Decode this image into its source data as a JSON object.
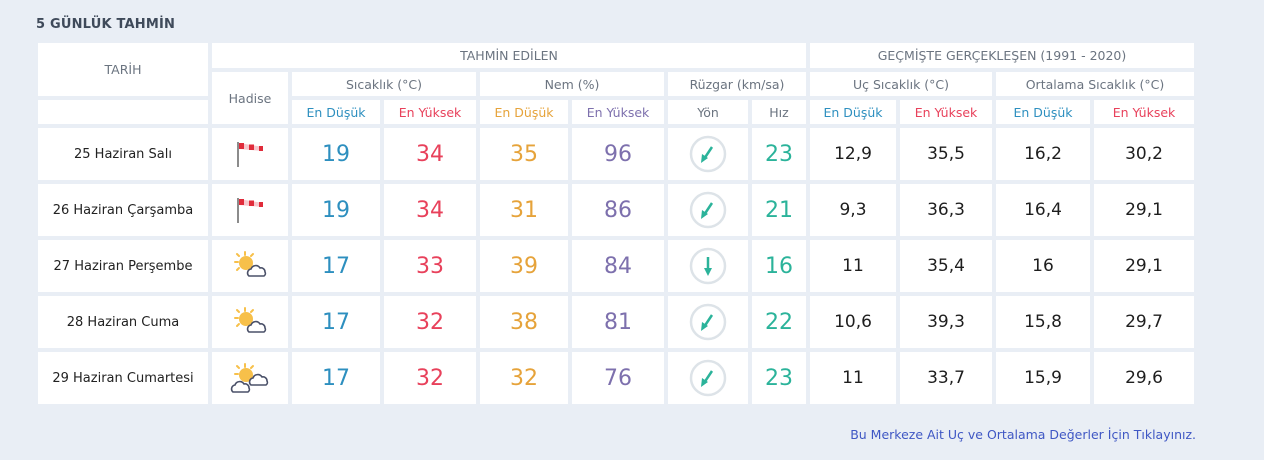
{
  "title": "5 GÜNLÜK TAHMİN",
  "headers": {
    "tarih": "TARİH",
    "tahmin": "TAHMİN EDİLEN",
    "gecmis": "GEÇMİŞTE GERÇEKLEŞEN (1991 - 2020)",
    "hadise": "Hadise",
    "sicaklik": "Sıcaklık (°C)",
    "nem": "Nem (%)",
    "ruzgar": "Rüzgar (km/sa)",
    "uc": "Uç Sıcaklık (°C)",
    "ortalama": "Ortalama Sıcaklık (°C)",
    "en_dusuk": "En Düşük",
    "en_yuksek": "En Yüksek",
    "yon": "Yön",
    "hiz": "Hız"
  },
  "colors": {
    "blue": "#2d8fbf",
    "red": "#e8415b",
    "orange": "#e6a33a",
    "purple": "#7d70ad",
    "teal": "#2bb39a"
  },
  "rows": [
    {
      "date": "25 Haziran Salı",
      "icon": "windy-flag-icon",
      "tmin": "19",
      "tmax": "34",
      "hmin": "35",
      "hmax": "96",
      "dir": "southwest-arrow",
      "speed": "23",
      "uc_min": "12,9",
      "uc_max": "35,5",
      "ort_min": "16,2",
      "ort_max": "30,2"
    },
    {
      "date": "26 Haziran Çarşamba",
      "icon": "windy-flag-icon",
      "tmin": "19",
      "tmax": "34",
      "hmin": "31",
      "hmax": "86",
      "dir": "southwest-arrow",
      "speed": "21",
      "uc_min": "9,3",
      "uc_max": "36,3",
      "ort_min": "16,4",
      "ort_max": "29,1"
    },
    {
      "date": "27 Haziran Perşembe",
      "icon": "partly-cloudy-icon",
      "tmin": "17",
      "tmax": "33",
      "hmin": "39",
      "hmax": "84",
      "dir": "south-arrow",
      "speed": "16",
      "uc_min": "11",
      "uc_max": "35,4",
      "ort_min": "16",
      "ort_max": "29,1"
    },
    {
      "date": "28 Haziran Cuma",
      "icon": "partly-cloudy-icon",
      "tmin": "17",
      "tmax": "32",
      "hmin": "38",
      "hmax": "81",
      "dir": "southwest-arrow",
      "speed": "22",
      "uc_min": "10,6",
      "uc_max": "39,3",
      "ort_min": "15,8",
      "ort_max": "29,7"
    },
    {
      "date": "29 Haziran Cumartesi",
      "icon": "mostly-cloudy-icon",
      "tmin": "17",
      "tmax": "32",
      "hmin": "32",
      "hmax": "76",
      "dir": "southwest-arrow",
      "speed": "23",
      "uc_min": "11",
      "uc_max": "33,7",
      "ort_min": "15,9",
      "ort_max": "29,6"
    }
  ],
  "footer_link": "Bu Merkeze Ait Uç ve Ortalama Değerler İçin Tıklayınız."
}
